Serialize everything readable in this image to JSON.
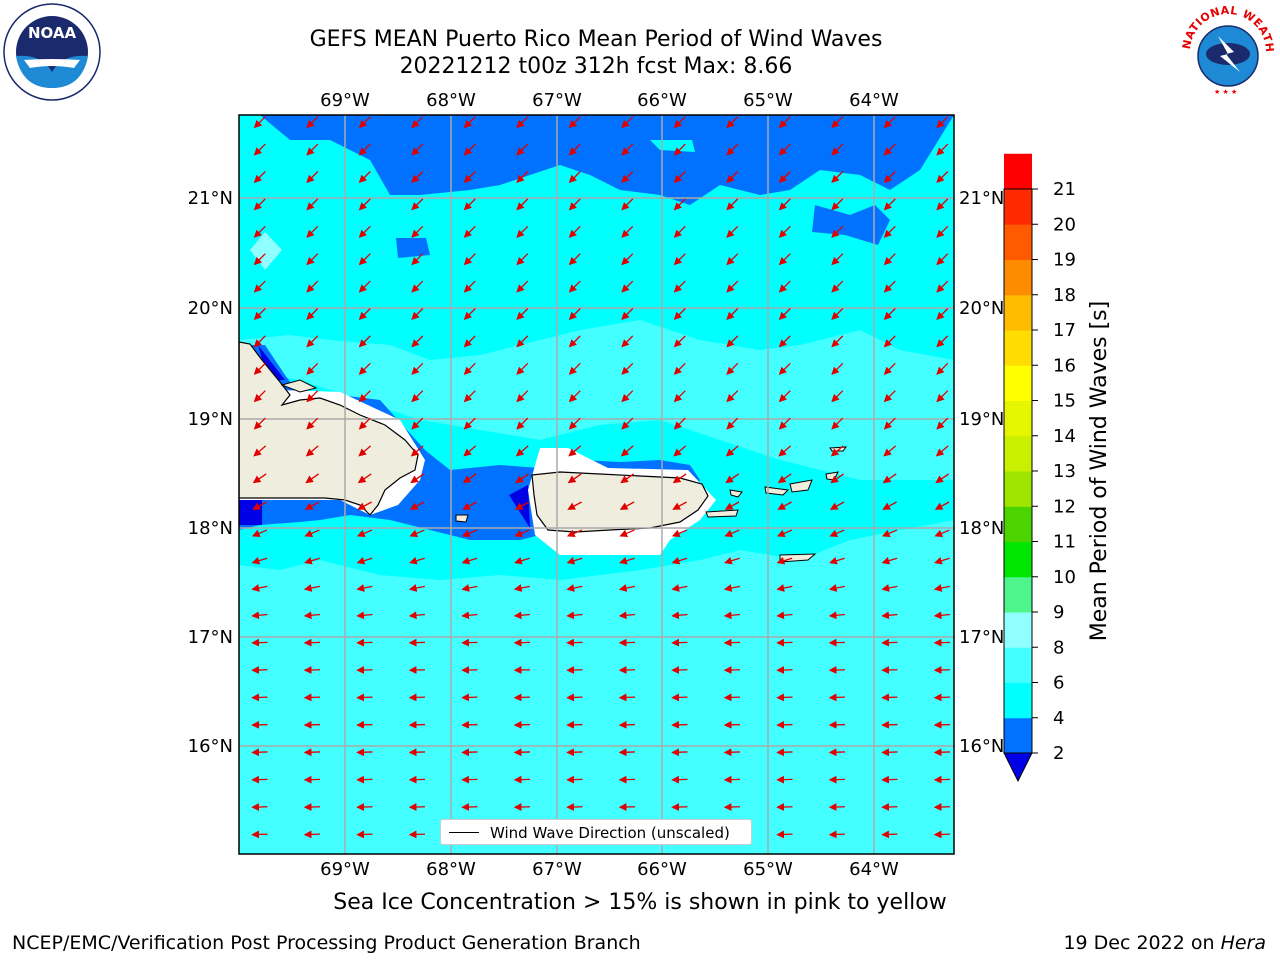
{
  "title": {
    "line1": "GEFS MEAN Puerto Rico Mean Period of Wind Waves",
    "line2": "20221212 t00z 312h fcst   Max: 8.66"
  },
  "logos": {
    "left": "NOAA",
    "right_arc": "NATIONAL WEATHER SERVICE"
  },
  "map": {
    "lon_labels": [
      "69°W",
      "68°W",
      "67°W",
      "66°W",
      "65°W",
      "64°W"
    ],
    "lat_labels": [
      "21°N",
      "20°N",
      "19°N",
      "18°N",
      "17°N",
      "16°N"
    ],
    "legend_label": "Wind Wave Direction (unscaled)",
    "land_color": "#efedde",
    "ocean_colors": {
      "2-4": "#0072ff",
      "4-6": "#00ffff",
      "6-8": "#44ffff",
      "8-9": "#90ffff",
      "<2": "#0000e6"
    }
  },
  "colorbar": {
    "label": "Mean Period of Wind Waves [s]",
    "ticks": [
      "2",
      "4",
      "6",
      "8",
      "9",
      "10",
      "11",
      "12",
      "13",
      "14",
      "15",
      "16",
      "17",
      "18",
      "19",
      "20",
      "21"
    ],
    "colors": [
      "#0072ff",
      "#00ffff",
      "#44ffff",
      "#90ffff",
      "#4df58a",
      "#00e600",
      "#4cd400",
      "#9ee600",
      "#c8f000",
      "#e6f500",
      "#ffff00",
      "#ffdd00",
      "#ffbb00",
      "#ff8c00",
      "#ff5a00",
      "#ff2a00",
      "#ff0000"
    ],
    "extend_color": "#0000e6"
  },
  "footer": {
    "ice_note": "Sea Ice Concentration > 15% is shown in pink to yellow",
    "credit": "NCEP/EMC/Verification Post Processing Product Generation Branch",
    "date_prefix": "19 Dec 2022 on ",
    "date_host": "Hera"
  }
}
